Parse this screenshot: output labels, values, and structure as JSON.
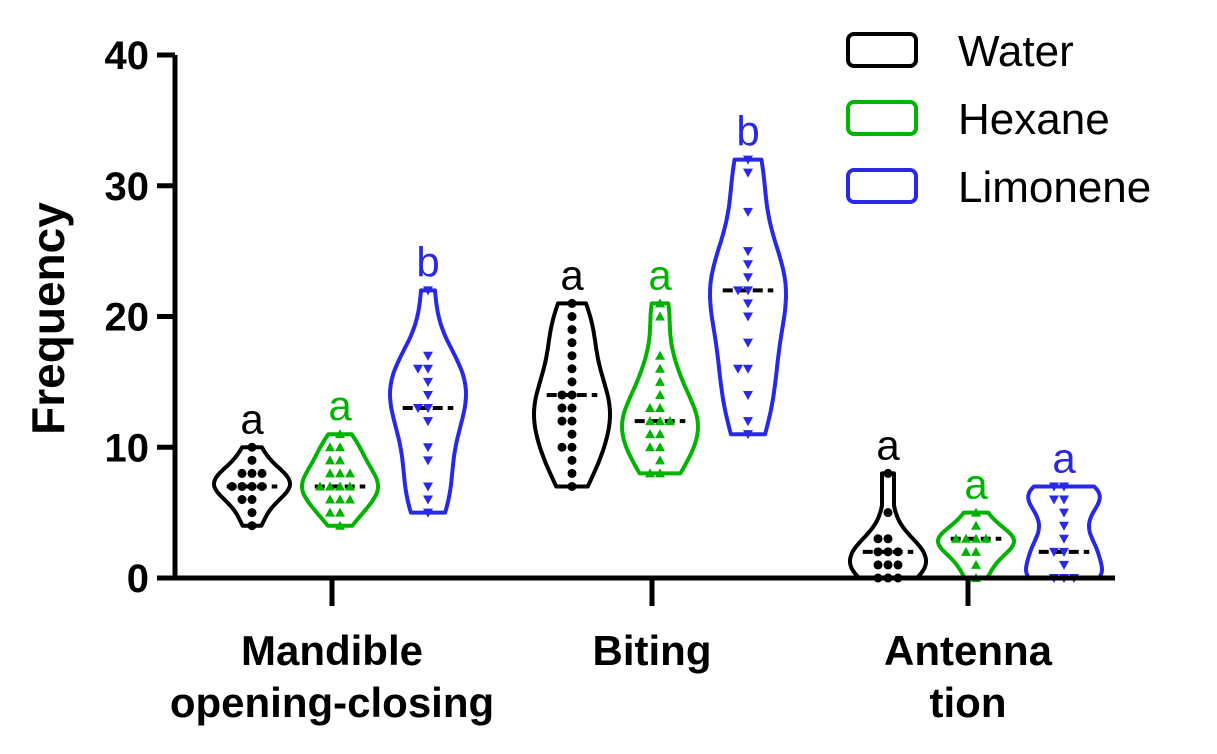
{
  "chart_data": {
    "type": "violin",
    "ylabel": "Frequency",
    "ylim": [
      0,
      40
    ],
    "yticks": [
      "0",
      "10",
      "20",
      "30",
      "40"
    ],
    "categories": [
      [
        "Mandible",
        "opening-closing"
      ],
      [
        "Biting"
      ],
      [
        "Antenna",
        "tion"
      ]
    ],
    "legend_position": "top-right",
    "series": [
      {
        "name": "Water",
        "color": "#000000",
        "marker": "circle",
        "groups": [
          {
            "min": 4,
            "max": 10,
            "median": 7,
            "letter": "a",
            "points": [
              4,
              5,
              6,
              6,
              7,
              7,
              7,
              7,
              8,
              8,
              8,
              9,
              10
            ]
          },
          {
            "min": 7,
            "max": 21,
            "median": 14,
            "letter": "a",
            "points": [
              7,
              8,
              9,
              10,
              10,
              11,
              12,
              12,
              13,
              13,
              14,
              14,
              15,
              16,
              17,
              18,
              19,
              20,
              21
            ]
          },
          {
            "min": 0,
            "max": 8,
            "median": 2,
            "letter": "a",
            "points": [
              0,
              0,
              0,
              1,
              1,
              1,
              2,
              2,
              2,
              3,
              3,
              5,
              8
            ]
          }
        ]
      },
      {
        "name": "Hexane",
        "color": "#00b300",
        "marker": "triangle-up",
        "groups": [
          {
            "min": 4,
            "max": 11,
            "median": 7,
            "letter": "a",
            "points": [
              4,
              5,
              5,
              6,
              6,
              6,
              7,
              7,
              7,
              7,
              8,
              8,
              8,
              9,
              9,
              10,
              10,
              11
            ]
          },
          {
            "min": 8,
            "max": 21,
            "median": 12,
            "letter": "a",
            "points": [
              8,
              8,
              9,
              10,
              10,
              11,
              11,
              12,
              12,
              12,
              13,
              13,
              14,
              15,
              16,
              17,
              20,
              21
            ]
          },
          {
            "min": 0,
            "max": 5,
            "median": 3,
            "letter": "a",
            "points": [
              0,
              1,
              2,
              2,
              3,
              3,
              3,
              3,
              4,
              5
            ]
          }
        ]
      },
      {
        "name": "Limonene",
        "color": "#2828e6",
        "marker": "triangle-down",
        "groups": [
          {
            "min": 5,
            "max": 22,
            "median": 13,
            "letter": "b",
            "points": [
              5,
              6,
              7,
              9,
              10,
              12,
              13,
              13,
              14,
              15,
              16,
              16,
              17,
              22
            ]
          },
          {
            "min": 11,
            "max": 32,
            "median": 22,
            "letter": "b",
            "points": [
              11,
              12,
              14,
              16,
              16,
              18,
              20,
              21,
              22,
              22,
              23,
              24,
              25,
              28,
              31,
              32
            ]
          },
          {
            "min": 0,
            "max": 7,
            "median": 2,
            "letter": "a",
            "points": [
              0,
              0,
              0,
              1,
              2,
              2,
              3,
              4,
              5,
              6,
              6,
              7,
              7
            ]
          }
        ]
      }
    ]
  }
}
